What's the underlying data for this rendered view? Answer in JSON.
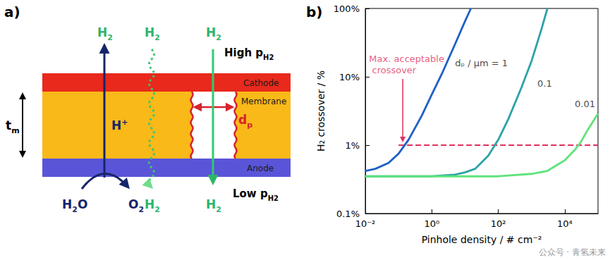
{
  "panel_a": {
    "label": "a)",
    "thickness": {
      "text": "t",
      "sub": "m"
    },
    "layers": {
      "cathode": "Cathode",
      "membrane": "Membrane",
      "anode": "Anode"
    },
    "high_pressure": {
      "text": "High p",
      "sub": "H2"
    },
    "low_pressure": {
      "text": "Low p",
      "sub": "H2"
    },
    "proton": {
      "text": "H",
      "sup": "+"
    },
    "water": {
      "text": "H",
      "sub": "2",
      "after": "O"
    },
    "oxygen": {
      "text": "O",
      "sub": "2"
    },
    "hydrogen": {
      "text": "H",
      "sub": "2"
    },
    "pinhole_diameter": {
      "text": "d",
      "sub": "p"
    }
  },
  "chart_data": {
    "type": "line",
    "title": "b)",
    "x_label": "Pinhole density / # cm⁻²",
    "y_label": "H₂ crossover / %",
    "log": true,
    "grid": false,
    "xlim": [
      0.01,
      100000
    ],
    "xticks": [
      {
        "value": 0.01,
        "label": "10⁻²"
      },
      {
        "value": 1,
        "label": "10⁰"
      },
      {
        "value": 100,
        "label": "10²"
      },
      {
        "value": 10000,
        "label": "10⁴"
      }
    ],
    "ylim": [
      0.1,
      100
    ],
    "yticks": [
      {
        "value": 0.1,
        "label": "0.1%"
      },
      {
        "value": 1,
        "label": "1%"
      },
      {
        "value": 10,
        "label": "10%"
      },
      {
        "value": 100,
        "label": "100%"
      }
    ],
    "series": [
      {
        "color": "#1f5fc6",
        "x": [
          0.01,
          0.02,
          0.05,
          0.1,
          0.2,
          0.5,
          1,
          2,
          5,
          10,
          15
        ],
        "values": [
          0.42,
          0.45,
          0.55,
          0.75,
          1.2,
          2.7,
          5.5,
          11,
          30,
          65,
          100
        ]
      },
      {
        "color": "#2aa3a8",
        "x": [
          0.01,
          0.1,
          1,
          5,
          10,
          20,
          50,
          100,
          200,
          500,
          1000,
          2000,
          3000
        ],
        "values": [
          0.35,
          0.35,
          0.35,
          0.37,
          0.4,
          0.45,
          0.7,
          1.2,
          2.4,
          7,
          17,
          50,
          100
        ]
      },
      {
        "color": "#5fe37c",
        "x": [
          0.01,
          1,
          10,
          100,
          1000,
          3000,
          10000,
          20000,
          30000,
          50000,
          100000
        ],
        "values": [
          0.35,
          0.35,
          0.35,
          0.35,
          0.38,
          0.42,
          0.6,
          0.85,
          1.1,
          1.7,
          2.9
        ]
      }
    ],
    "reference_line": {
      "y": 1,
      "x": [
        0.1,
        100000
      ],
      "color": "#e0315e",
      "line_style": "dashed"
    },
    "annotations": [
      {
        "text": "dₚ / μm = 1",
        "x": 5,
        "y": 16
      },
      {
        "text": "0.1",
        "x": 1500,
        "y": 8
      },
      {
        "text": "0.01",
        "x": 20000,
        "y": 4
      },
      {
        "text": "Max. acceptable crossover",
        "x": 0.013,
        "y": 15,
        "color": "#e0315e"
      }
    ]
  },
  "watermark": "公众号 · 青氢未来"
}
